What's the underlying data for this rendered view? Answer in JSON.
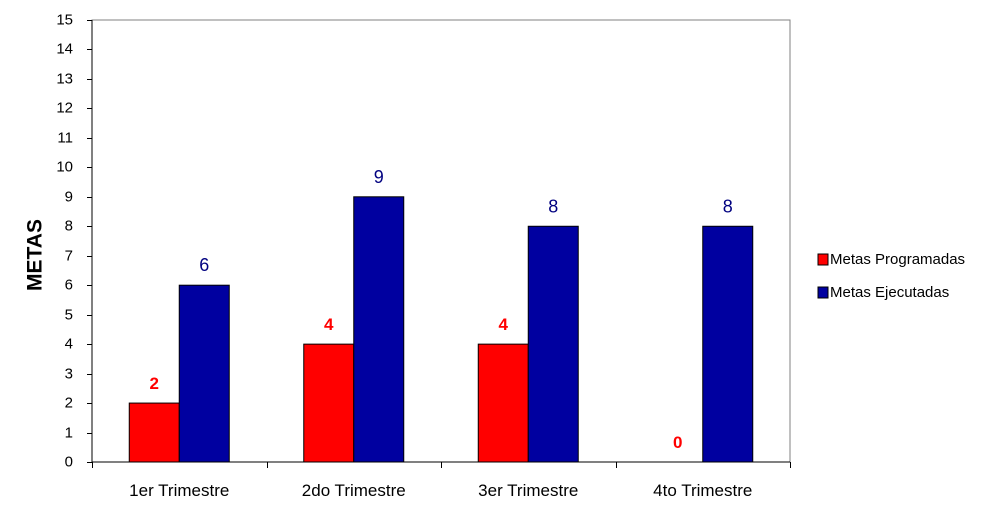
{
  "chart_data": {
    "type": "bar",
    "title": "",
    "xlabel": "",
    "ylabel": "METAS",
    "ylim": [
      0,
      15
    ],
    "yticks": [
      0,
      1,
      2,
      3,
      4,
      5,
      6,
      7,
      8,
      9,
      10,
      11,
      12,
      13,
      14,
      15
    ],
    "grid": false,
    "legend_position": "right",
    "categories": [
      "1er Trimestre",
      "2do Trimestre",
      "3er Trimestre",
      "4to Trimestre"
    ],
    "series": [
      {
        "name": "Metas Programadas",
        "values": [
          2,
          4,
          4,
          0
        ],
        "color": "#ff0000",
        "label_color": "#ff0000",
        "label_style": "bold"
      },
      {
        "name": "Metas Ejecutadas",
        "values": [
          6,
          9,
          8,
          8
        ],
        "color": "#0000a0",
        "label_color": "#000080",
        "label_style": "normal"
      }
    ]
  }
}
